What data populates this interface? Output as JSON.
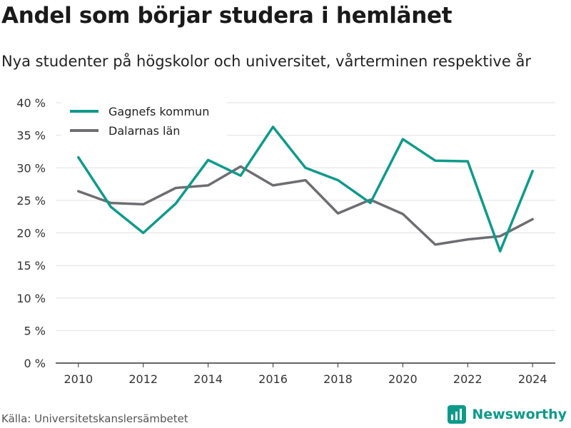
{
  "title": "Andel som börjar studera i hemlänet",
  "subtitle": "Nya studenter på högskolor och universitet, vårterminen respektive år",
  "source": "Källa: Universitetskanslersämbetet",
  "brand": "Newsworthy",
  "colors": {
    "series1": "#0e9a8b",
    "series2": "#6e6d72",
    "grid": "#e0e0e0",
    "brand": "#0e9a8b"
  },
  "chart_data": {
    "type": "line",
    "x": [
      2010,
      2011,
      2012,
      2013,
      2014,
      2015,
      2016,
      2017,
      2018,
      2019,
      2020,
      2021,
      2022,
      2023,
      2024
    ],
    "xticks": [
      2010,
      2012,
      2014,
      2016,
      2018,
      2020,
      2022,
      2024
    ],
    "yticks": [
      0,
      5,
      10,
      15,
      20,
      25,
      30,
      35,
      40
    ],
    "ytick_suffix": " %",
    "xlim": [
      2009.3,
      2024.7
    ],
    "ylim": [
      0,
      40
    ],
    "legend_position": "top-left",
    "grid": true,
    "series": [
      {
        "name": "Gagnefs kommun",
        "color": "#0e9a8b",
        "values": [
          31.6,
          24.0,
          20.0,
          24.5,
          31.2,
          28.8,
          36.3,
          30.0,
          28.1,
          24.6,
          34.4,
          31.1,
          31.0,
          17.2,
          29.5
        ]
      },
      {
        "name": "Dalarnas län",
        "color": "#6e6d72",
        "values": [
          26.4,
          24.6,
          24.4,
          26.9,
          27.3,
          30.2,
          27.3,
          28.1,
          23.0,
          25.1,
          22.9,
          18.2,
          19.0,
          19.5,
          22.1
        ]
      }
    ]
  }
}
